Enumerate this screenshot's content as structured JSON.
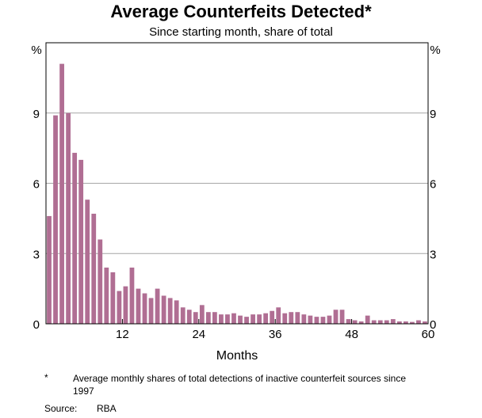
{
  "chart_data": {
    "type": "bar",
    "title": "Average Counterfeits Detected*",
    "subtitle": "Since starting month, share of total",
    "xlabel": "Months",
    "ylabel": "%",
    "ylabel_right": "%",
    "xlim": [
      0,
      60
    ],
    "ylim": [
      0,
      12
    ],
    "yticks": [
      0,
      3,
      6,
      9
    ],
    "xticks": [
      12,
      24,
      36,
      48,
      60
    ],
    "grid": true,
    "bar_color": "#b06e93",
    "months": [
      1,
      2,
      3,
      4,
      5,
      6,
      7,
      8,
      9,
      10,
      11,
      12,
      13,
      14,
      15,
      16,
      17,
      18,
      19,
      20,
      21,
      22,
      23,
      24,
      25,
      26,
      27,
      28,
      29,
      30,
      31,
      32,
      33,
      34,
      35,
      36,
      37,
      38,
      39,
      40,
      41,
      42,
      43,
      44,
      45,
      46,
      47,
      48,
      49,
      50,
      51,
      52,
      53,
      54,
      55,
      56,
      57,
      58,
      59,
      60
    ],
    "values": [
      4.6,
      8.9,
      11.1,
      9.0,
      7.3,
      7.0,
      5.3,
      4.7,
      3.6,
      2.4,
      2.2,
      1.4,
      1.6,
      2.4,
      1.5,
      1.3,
      1.1,
      1.5,
      1.2,
      1.1,
      1.0,
      0.7,
      0.6,
      0.5,
      0.8,
      0.5,
      0.5,
      0.4,
      0.4,
      0.45,
      0.35,
      0.3,
      0.4,
      0.4,
      0.45,
      0.55,
      0.7,
      0.45,
      0.5,
      0.5,
      0.4,
      0.35,
      0.3,
      0.3,
      0.35,
      0.6,
      0.6,
      0.2,
      0.15,
      0.1,
      0.35,
      0.15,
      0.15,
      0.15,
      0.2,
      0.1,
      0.1,
      0.08,
      0.15,
      0.1
    ]
  },
  "footnote": {
    "mark": "*",
    "text": "Average monthly shares of total detections of inactive counterfeit sources since 1997"
  },
  "source": {
    "label": "Source:",
    "value": "RBA"
  }
}
